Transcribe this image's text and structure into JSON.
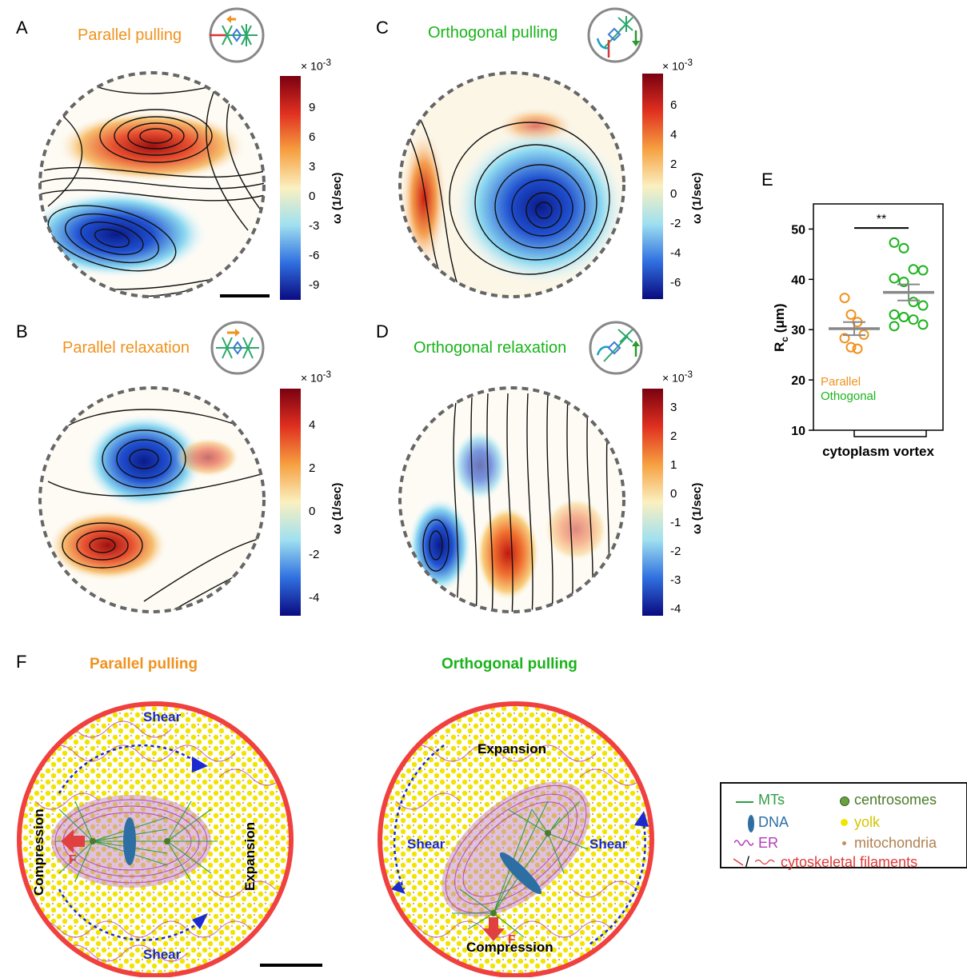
{
  "panels": {
    "A": {
      "letter": "A",
      "title": "Parallel pulling",
      "cb_exp": "× 10",
      "cb_exp_sup": "-3",
      "cb_unit": "ω (1/sec)",
      "ticks": [
        "9",
        "6",
        "3",
        "0",
        "-3",
        "-6",
        "-9"
      ]
    },
    "B": {
      "letter": "B",
      "title": "Parallel relaxation",
      "cb_exp": "× 10",
      "cb_exp_sup": "-3",
      "cb_unit": "ω (1/sec)",
      "ticks": [
        "4",
        "2",
        "0",
        "-2",
        "-4"
      ]
    },
    "C": {
      "letter": "C",
      "title": "Orthogonal pulling",
      "cb_exp": "× 10",
      "cb_exp_sup": "-3",
      "cb_unit": "ω (1/sec)",
      "ticks": [
        "6",
        "4",
        "2",
        "0",
        "-2",
        "-4",
        "-6"
      ]
    },
    "D": {
      "letter": "D",
      "title": "Orthogonal relaxation",
      "cb_exp": "× 10",
      "cb_exp_sup": "-3",
      "cb_unit": "ω (1/sec)",
      "ticks": [
        "3",
        "2",
        "1",
        "0",
        "-1",
        "-2",
        "-3",
        "-4"
      ]
    }
  },
  "panel_E": {
    "letter": "E",
    "ylabel_main": "R",
    "ylabel_sub": "c",
    "ylabel_unit": " (μm)",
    "xlabel": "cytoplasm vortex",
    "significance": "**",
    "legend_parallel": "Parallel",
    "legend_orthogonal": "Othogonal",
    "colors": {
      "parallel": "#f0921e",
      "orthogonal": "#1ab31a"
    }
  },
  "chart_data": {
    "type": "scatter",
    "ylabel": "Rc (μm)",
    "xlabel": "cytoplasm vortex",
    "ylim": [
      10,
      55
    ],
    "yticks": [
      10,
      20,
      30,
      40,
      50
    ],
    "series": [
      {
        "name": "Parallel",
        "values": [
          36.3,
          33.0,
          31.5,
          29.0,
          28.3,
          26.5,
          26.2
        ],
        "mean": 30.2,
        "sem": 1.3
      },
      {
        "name": "Othogonal",
        "values": [
          47.3,
          46.2,
          42.0,
          41.8,
          40.2,
          39.5,
          35.5,
          34.8,
          33.0,
          32.5,
          32.0,
          31.0,
          30.7
        ],
        "mean": 37.4,
        "sem": 1.6
      }
    ]
  },
  "panel_F": {
    "letter": "F",
    "left_title": "Parallel pulling",
    "right_title": "Orthogonal pulling",
    "left": {
      "shear_top": "Shear",
      "shear_bottom": "Shear",
      "compression": "Compression",
      "expansion": "Expansion",
      "force": "F"
    },
    "right": {
      "expansion": "Expansion",
      "shear_left": "Shear",
      "shear_right": "Shear",
      "compression": "Compression",
      "force": "F"
    }
  },
  "legend": {
    "mts": "MTs",
    "dna": "DNA",
    "er": "ER",
    "filaments_sep": "/",
    "filaments": "cytoskeletal filaments",
    "centrosomes": "centrosomes",
    "yolk": "yolk",
    "mitochondria": "mitochondria",
    "colors": {
      "mts": "#2e9e44",
      "dna": "#2e6fa3",
      "er": "#b23cb8",
      "filaments": "#e03a3a",
      "centrosomes": "#4a7a2a",
      "yolk": "#d4c500",
      "mitochondria": "#b08050"
    }
  }
}
